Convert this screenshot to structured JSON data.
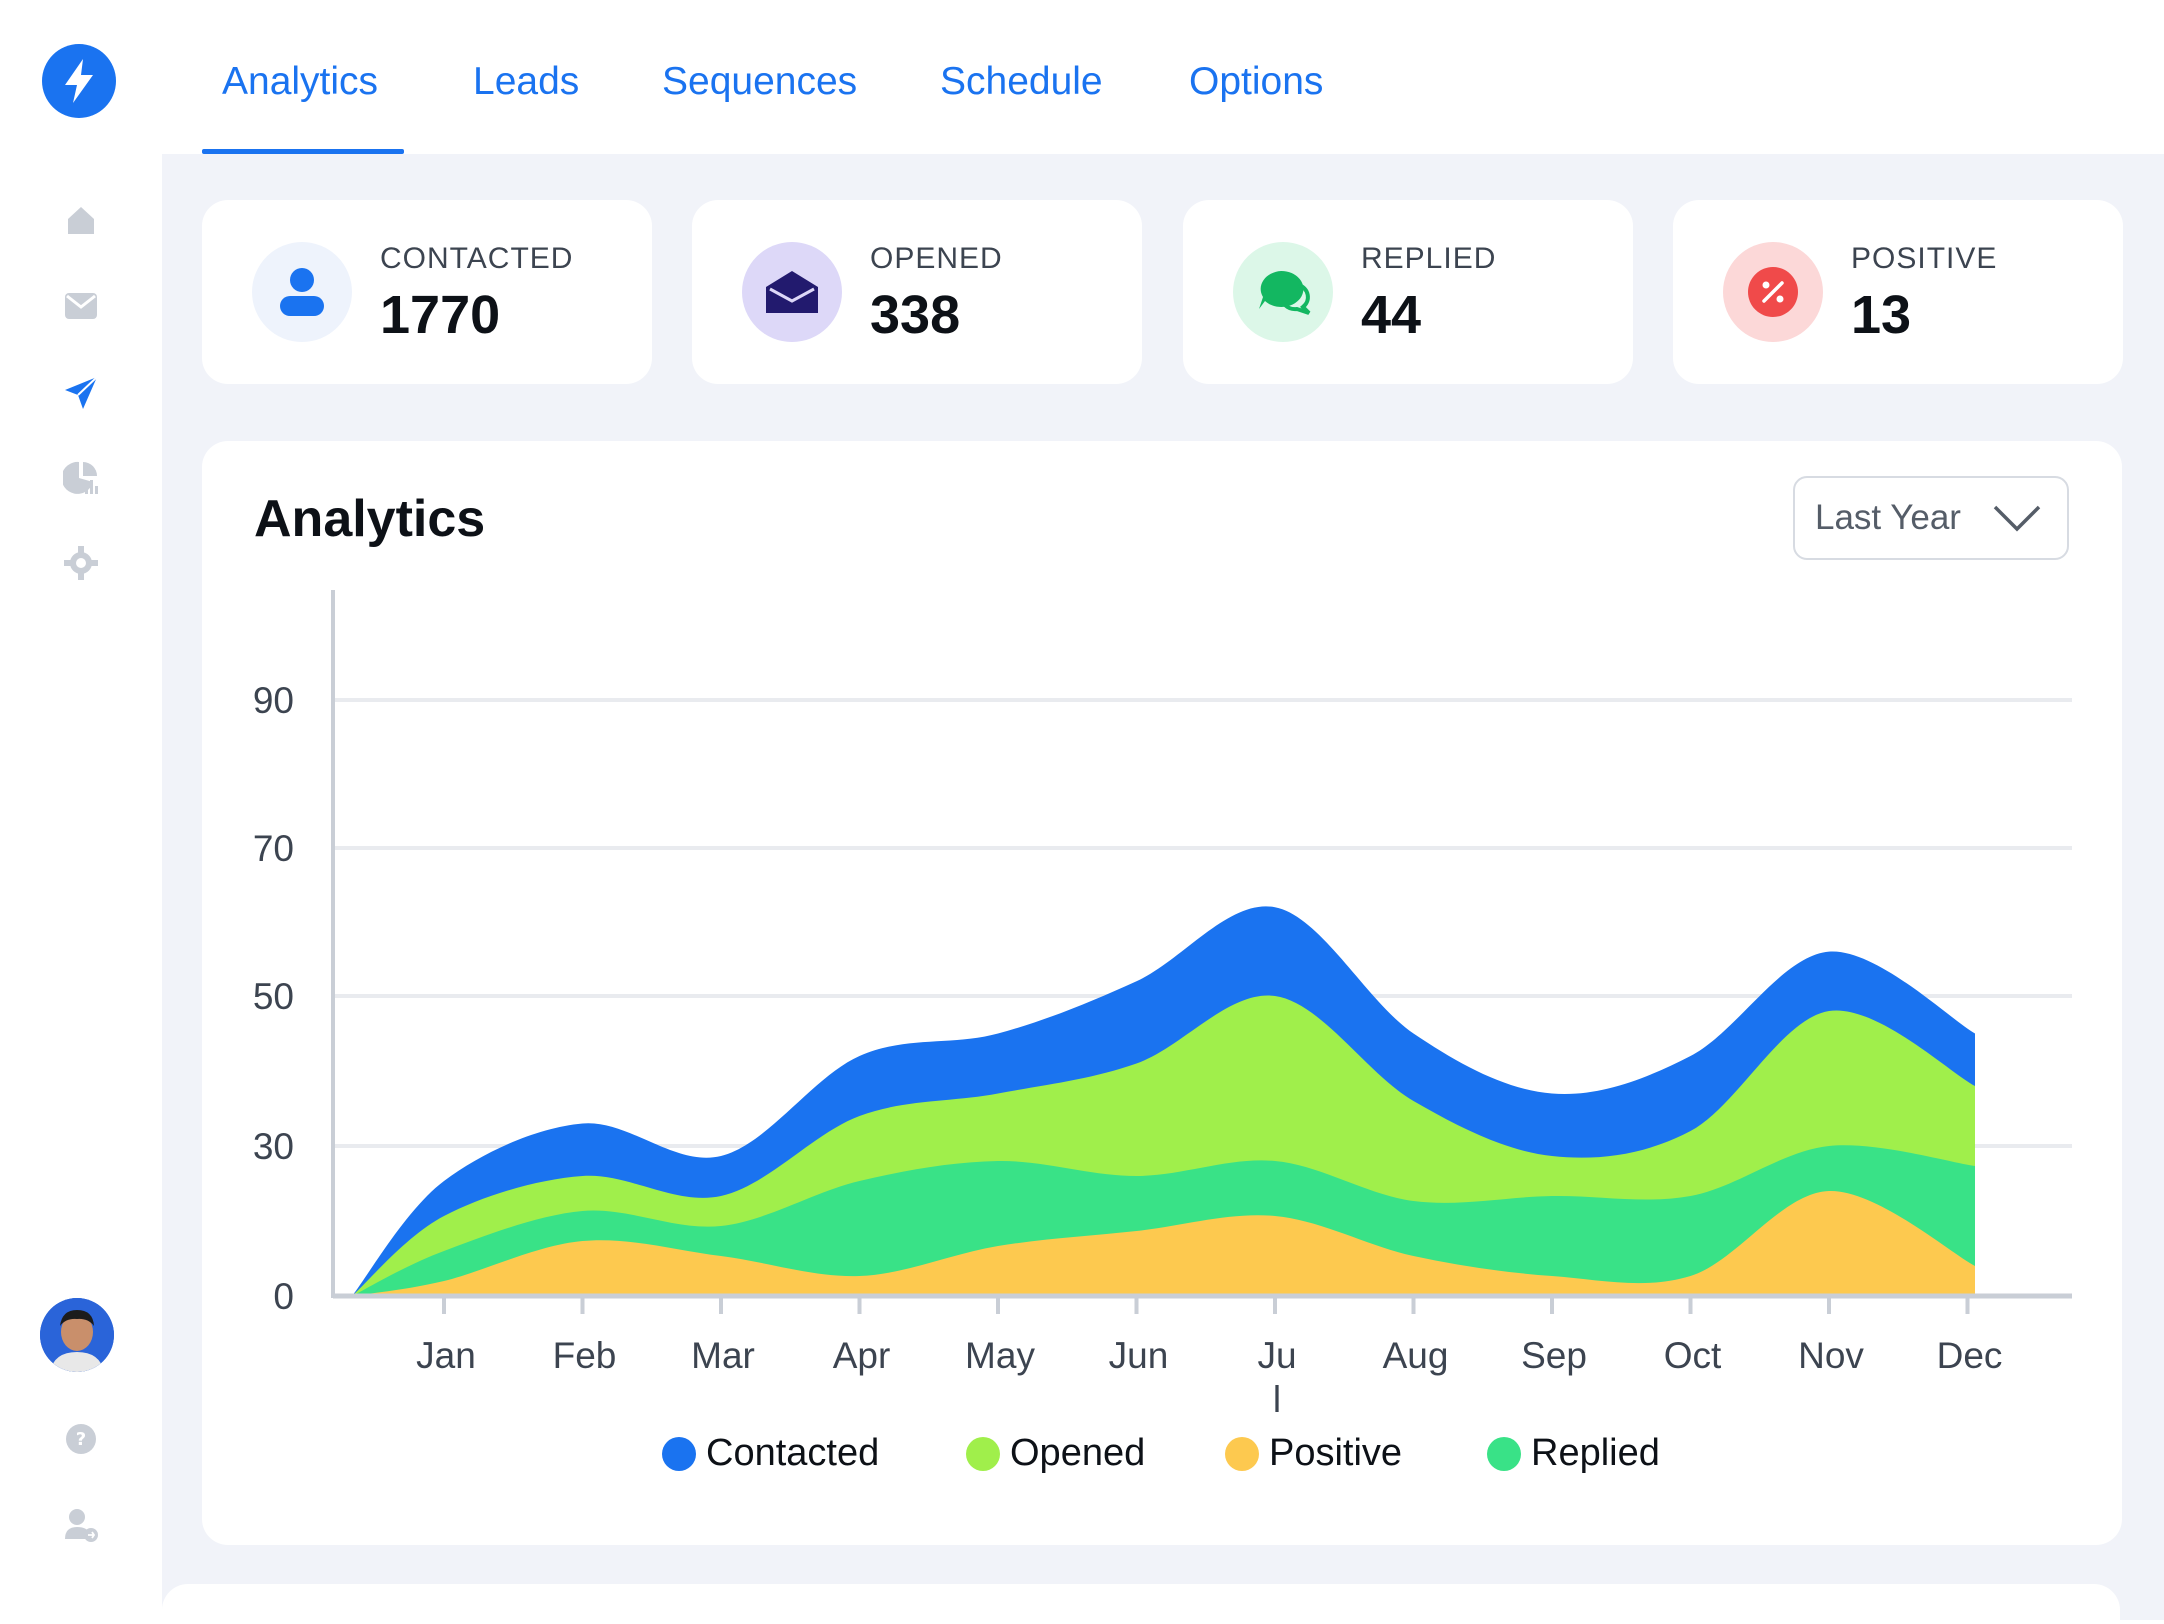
{
  "nav": {
    "tabs": [
      {
        "label": "Analytics"
      },
      {
        "label": "Leads"
      },
      {
        "label": "Sequences"
      },
      {
        "label": "Schedule"
      },
      {
        "label": "Options"
      }
    ],
    "active_tab": "Analytics"
  },
  "sidebar": {
    "items": [
      "home-icon",
      "mail-icon",
      "send-icon",
      "pie-chart-icon",
      "gear-icon"
    ],
    "active": "send-icon",
    "bottom": [
      "avatar",
      "help-icon",
      "user-logout-icon"
    ]
  },
  "stats": [
    {
      "label": "CONTACTED",
      "value": "1770",
      "icon": "user-icon",
      "color": "#1a73f0",
      "bg": "#eef3fc"
    },
    {
      "label": "OPENED",
      "value": "338",
      "icon": "open-envelope-icon",
      "color": "#221a6e",
      "bg": "#ddd8f8"
    },
    {
      "label": "REPLIED",
      "value": "44",
      "icon": "chat-bubbles-icon",
      "color": "#13b761",
      "bg": "#dcf7e8"
    },
    {
      "label": "POSITIVE",
      "value": "13",
      "icon": "percent-icon",
      "color": "#f04a4a",
      "bg": "#fcd8d8"
    }
  ],
  "panel": {
    "title": "Analytics",
    "range_select": "Last Year"
  },
  "chart_data": {
    "type": "area",
    "stacked": true,
    "smooth": true,
    "categories": [
      "Jan",
      "Feb",
      "Mar",
      "Apr",
      "May",
      "Jun",
      "Ju\nl",
      "Aug",
      "Sep",
      "Oct",
      "Nov",
      "Dec"
    ],
    "y_ticks": [
      0,
      30,
      50,
      70,
      90
    ],
    "ylim": [
      0,
      95
    ],
    "grid": true,
    "series": [
      {
        "name": "Positive",
        "color": "#fdc94f",
        "values": [
          3,
          11,
          8,
          4,
          10,
          13,
          16,
          8,
          4,
          4,
          21,
          6
        ]
      },
      {
        "name": "Replied",
        "color": "#39e287",
        "values": [
          6,
          6,
          6,
          19,
          17,
          11,
          11,
          11,
          16,
          16,
          9,
          20
        ]
      },
      {
        "name": "Opened",
        "color": "#a0ef4b",
        "values": [
          7,
          7,
          6,
          11,
          10,
          17,
          23,
          17,
          8,
          12,
          18,
          12
        ]
      },
      {
        "name": "Contacted",
        "color": "#1a73f0",
        "values": [
          7,
          9,
          8,
          8,
          8,
          11,
          12,
          9,
          9,
          10,
          8,
          7
        ]
      }
    ],
    "legend": [
      {
        "name": "Contacted",
        "color": "#1a73f0"
      },
      {
        "name": "Opened",
        "color": "#a0ef4b"
      },
      {
        "name": "Positive",
        "color": "#fdc94f"
      },
      {
        "name": "Replied",
        "color": "#39e287"
      }
    ]
  }
}
